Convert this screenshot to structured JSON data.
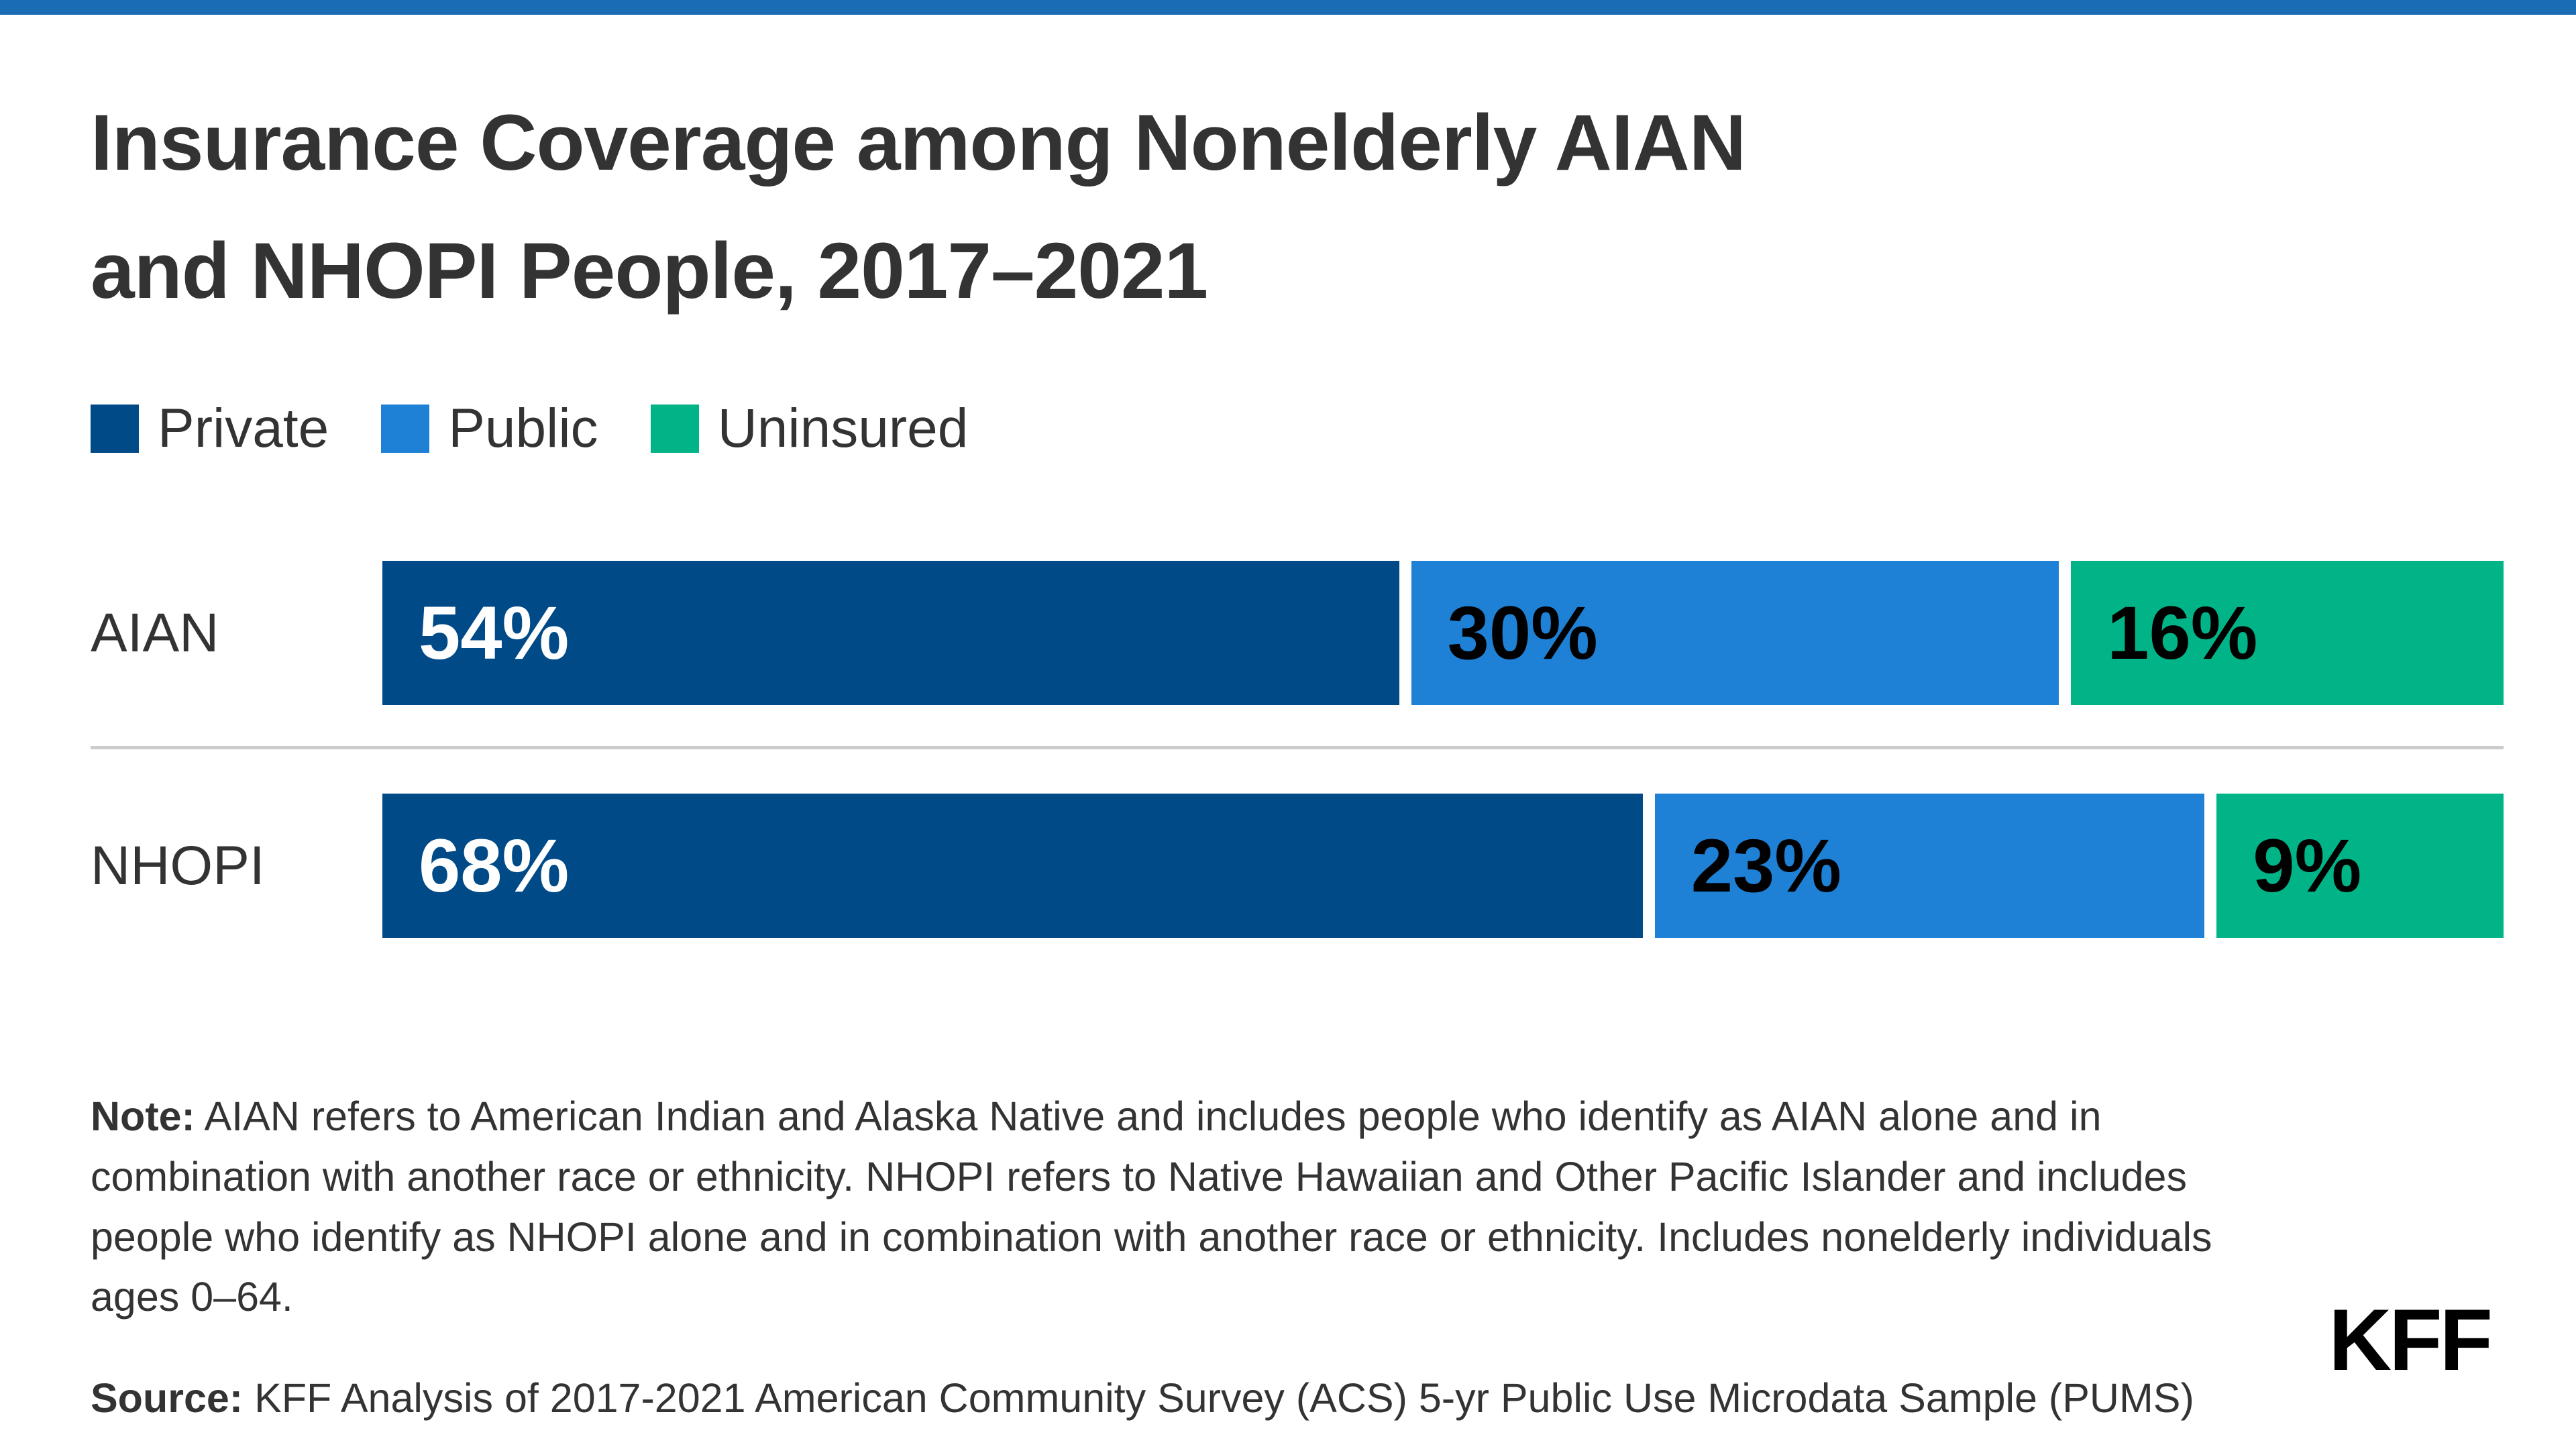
{
  "colors": {
    "accent": "#1a6cb5",
    "private": "#004a87",
    "public": "#1e81d6",
    "uninsured": "#00b487",
    "text": "#333333",
    "divider": "#cccccc"
  },
  "title": {
    "line1": "Insurance Coverage among Nonelderly AIAN",
    "line2": "and NHOPI People, 2017–2021"
  },
  "legend": {
    "items": [
      {
        "label": "Private"
      },
      {
        "label": "Public"
      },
      {
        "label": "Uninsured"
      }
    ]
  },
  "rows": [
    {
      "label": "AIAN",
      "segments": [
        {
          "name": "Private",
          "value": 54,
          "label": "54%"
        },
        {
          "name": "Public",
          "value": 30,
          "label": "30%"
        },
        {
          "name": "Uninsured",
          "value": 16,
          "label": "16%"
        }
      ]
    },
    {
      "label": "NHOPI",
      "segments": [
        {
          "name": "Private",
          "value": 68,
          "label": "68%"
        },
        {
          "name": "Public",
          "value": 23,
          "label": "23%"
        },
        {
          "name": "Uninsured",
          "value": 9,
          "label": "9%"
        }
      ]
    }
  ],
  "note": {
    "prefix": "Note:",
    "text": " AIAN refers to American Indian and Alaska Native and includes people who identify as AIAN alone and in combination with another race or ethnicity. NHOPI refers to Native Hawaiian and Other Pacific Islander and includes people who identify as NHOPI alone and in combination with another race or ethnicity. Includes nonelderly individuals ages 0–64."
  },
  "source": {
    "prefix": "Source:",
    "text": " KFF Analysis of 2017-2021 American Community Survey (ACS) 5-yr Public Use Microdata Sample (PUMS)"
  },
  "logo": "KFF",
  "chart_data": {
    "type": "bar",
    "subtype": "horizontal-stacked",
    "title": "Insurance Coverage among Nonelderly AIAN and NHOPI People, 2017–2021",
    "categories": [
      "AIAN",
      "NHOPI"
    ],
    "series": [
      {
        "name": "Private",
        "color": "#004a87",
        "values": [
          54,
          68
        ]
      },
      {
        "name": "Public",
        "color": "#1e81d6",
        "values": [
          30,
          23
        ]
      },
      {
        "name": "Uninsured",
        "color": "#00b487",
        "values": [
          16,
          9
        ]
      }
    ],
    "value_format": "percent",
    "xlim": [
      0,
      100
    ],
    "grid": false,
    "legend_position": "top-left",
    "data_labels": [
      [
        "54%",
        "30%",
        "16%"
      ],
      [
        "68%",
        "23%",
        "9%"
      ]
    ],
    "note": "Note: AIAN refers to American Indian and Alaska Native and includes people who identify as AIAN alone and in combination with another race or ethnicity. NHOPI refers to Native Hawaiian and Other Pacific Islander and includes people who identify as NHOPI alone and in combination with another race or ethnicity. Includes nonelderly individuals ages 0–64.",
    "source": "Source: KFF Analysis of 2017-2021 American Community Survey (ACS) 5-yr Public Use Microdata Sample (PUMS)"
  }
}
